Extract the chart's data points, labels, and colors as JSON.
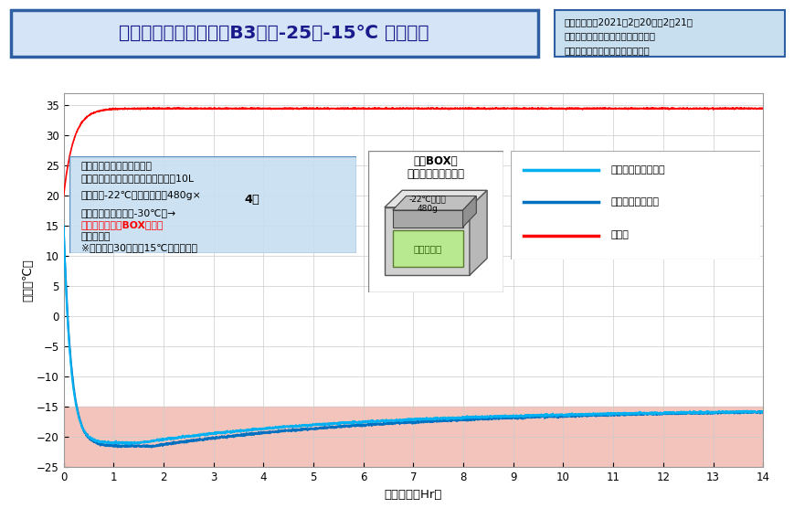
{
  "title": "定温輸送容器セット　B3案　-25～-15℃ 温度試験",
  "xlabel": "経過時間（Hr）",
  "ylabel": "温度（℃）",
  "xlim": [
    0,
    14
  ],
  "ylim": [
    -25,
    37
  ],
  "yticks": [
    -25,
    -20,
    -15,
    -10,
    -5,
    0,
    5,
    10,
    15,
    20,
    25,
    30,
    35
  ],
  "xticks": [
    0,
    1,
    2,
    3,
    4,
    5,
    6,
    7,
    8,
    9,
    10,
    11,
    12,
    13,
    14
  ],
  "shade_ymin": -25,
  "shade_ymax": -15,
  "shade_color": "#f2c4bc",
  "line_center_color": "#00b0f0",
  "line_corner_color": "#0070c0",
  "line_outside_color": "#ff0000",
  "bg_color": "#ffffff",
  "title_box_color": "#d6e4f7",
  "info_box_color": "#c8dff0",
  "conditions_box_color": "#c8dff0",
  "legend_box_color": "#f0f0f0",
  "legend_center": "アルミ内箱内中心部",
  "legend_corner": "アルミ内箱内スミ",
  "legend_outside": "外気温",
  "info_line1": "試験実施日：2021年2月20日～2月21日",
  "info_line2": "試験実施場所　：　㈱スギヤマゲン",
  "info_line3": "試験実施者　：　㈱スギヤマゲン"
}
